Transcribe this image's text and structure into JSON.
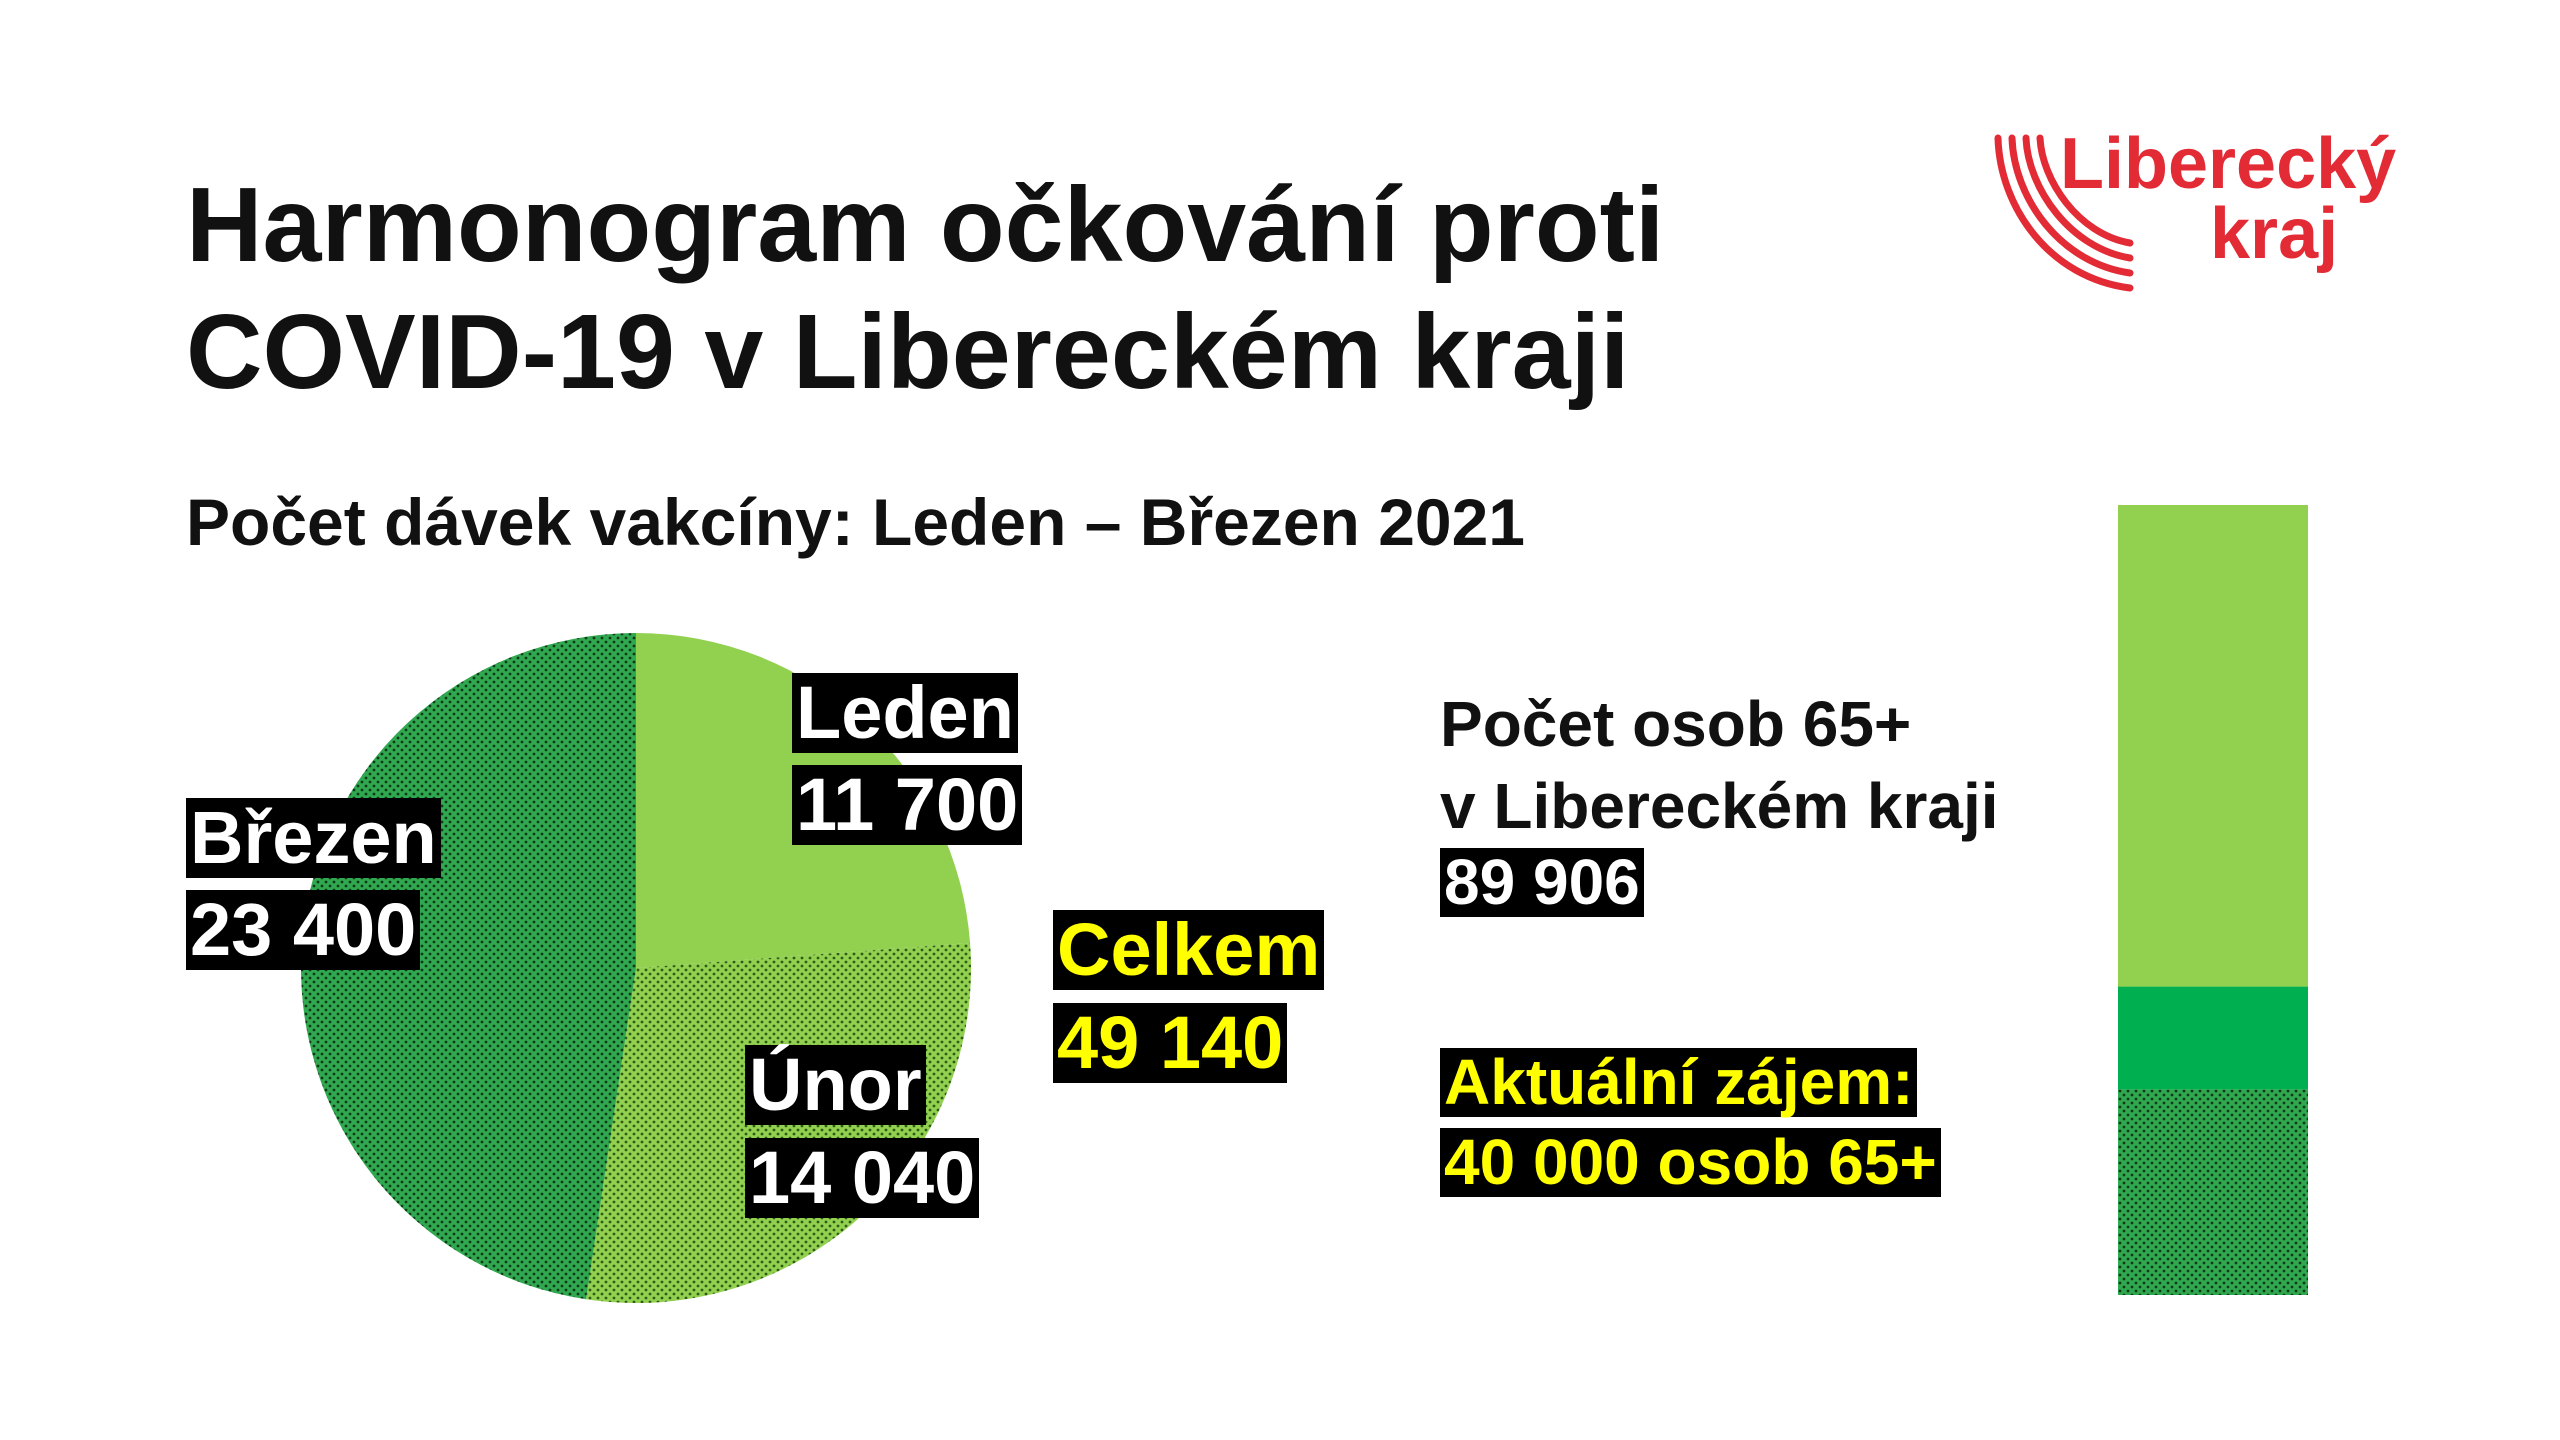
{
  "header": {
    "title_line1": "Harmonogram očkování proti",
    "title_line2": "COVID-19 v Libereckém kraji",
    "subtitle": "Počet dávek vakcíny: Leden – Březen 2021"
  },
  "logo": {
    "line1": "Liberecký",
    "line2": "kraj",
    "color": "#e32b36"
  },
  "chart_data": [
    {
      "type": "pie",
      "categories": [
        "Leden",
        "Únor",
        "Březen"
      ],
      "values": [
        11700,
        14040,
        23400
      ],
      "value_labels": [
        "11 700",
        "14 040",
        "23 400"
      ],
      "colors": [
        "#92d050",
        "#92d050",
        "#2fa84f"
      ],
      "patterned": [
        false,
        true,
        true
      ],
      "total_label": "Celkem",
      "total_value": "49 140"
    },
    {
      "type": "bar",
      "orientation": "vertical-stacked",
      "population_label_line1": "Počet osob 65+",
      "population_label_line2": "v Libereckém kraji",
      "population_value": "89 906",
      "population": 89906,
      "interest_label_line1": "Aktuální zájem:",
      "interest_label_line2": "40 000 osob 65+",
      "interest": 40000,
      "covered_doses": 49140,
      "segment_values_bottom_to_top": [
        23400,
        11700,
        54806
      ],
      "segment_colors_bottom_to_top": [
        "#2fa84f",
        "#00b050",
        "#92d050"
      ],
      "segment_patterned_bottom_to_top": [
        true,
        false,
        false
      ]
    }
  ]
}
